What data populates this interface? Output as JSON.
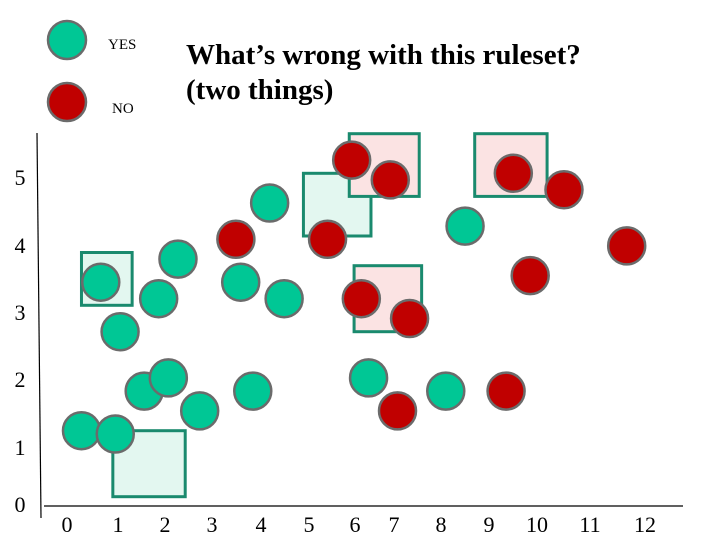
{
  "title": "What’s wrong with this ruleset?\n(two things)",
  "legend": [
    {
      "label": "YES",
      "color": "#00c795"
    },
    {
      "label": "NO",
      "color": "#c00000"
    }
  ],
  "colors": {
    "yes": "#00c795",
    "no": "#c00000",
    "box_border": "#1a8a6e",
    "box_fill_yes": "#e3f7f0",
    "box_fill_no": "#fbe3e3",
    "point_outline": "#6b6b6b"
  },
  "chart_data": {
    "type": "scatter",
    "x_ticks": [
      "0",
      "1",
      "2",
      "3",
      "4",
      "5",
      "6",
      "7",
      "8",
      "9",
      "10",
      "11",
      "12"
    ],
    "y_ticks": [
      "0",
      "1",
      "2",
      "3",
      "4",
      "5"
    ],
    "series": [
      {
        "class": "YES",
        "points": [
          [
            0.3,
            1.05
          ],
          [
            1.0,
            1.0
          ],
          [
            0.7,
            3.3
          ],
          [
            1.1,
            2.55
          ],
          [
            1.6,
            1.65
          ],
          [
            1.9,
            3.05
          ],
          [
            2.1,
            1.85
          ],
          [
            2.3,
            3.65
          ],
          [
            2.75,
            1.35
          ],
          [
            3.6,
            3.3
          ],
          [
            3.85,
            1.65
          ],
          [
            4.2,
            4.5
          ],
          [
            4.5,
            3.05
          ],
          [
            6.25,
            1.85
          ],
          [
            7.85,
            1.65
          ],
          [
            8.25,
            4.15
          ]
        ]
      },
      {
        "class": "NO",
        "points": [
          [
            3.5,
            3.95
          ],
          [
            5.4,
            3.95
          ],
          [
            5.9,
            5.15
          ],
          [
            6.7,
            4.85
          ],
          [
            6.1,
            3.05
          ],
          [
            7.1,
            2.75
          ],
          [
            6.85,
            1.35
          ],
          [
            9.25,
            4.95
          ],
          [
            9.6,
            3.4
          ],
          [
            10.3,
            4.7
          ],
          [
            9.1,
            1.65
          ],
          [
            11.6,
            3.85
          ]
        ]
      }
    ],
    "rule_boxes": [
      {
        "class": "YES",
        "x": [
          0.3,
          1.35
        ],
        "y": [
          2.95,
          3.75
        ]
      },
      {
        "class": "YES",
        "x": [
          0.95,
          2.45
        ],
        "y": [
          0.05,
          1.05
        ]
      },
      {
        "class": "YES",
        "x": [
          4.9,
          6.3
        ],
        "y": [
          4.0,
          4.95
        ]
      },
      {
        "class": "NO",
        "x": [
          5.85,
          7.3
        ],
        "y": [
          4.6,
          5.55
        ]
      },
      {
        "class": "NO",
        "x": [
          8.45,
          9.95
        ],
        "y": [
          4.6,
          5.55
        ]
      },
      {
        "class": "NO",
        "x": [
          5.95,
          7.35
        ],
        "y": [
          2.55,
          3.55
        ]
      }
    ]
  }
}
